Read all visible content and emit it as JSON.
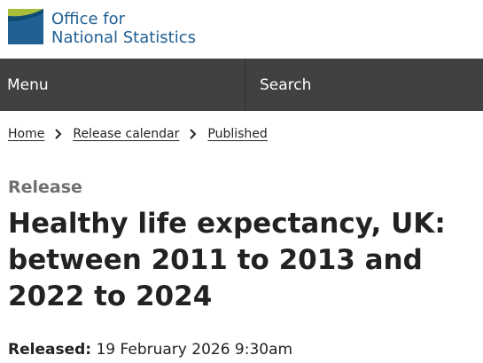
{
  "header": {
    "logo_line1": "Office for",
    "logo_line2": "National Statistics",
    "logo_icon": "ons-logo-icon",
    "brand_colors": {
      "blue": "#206095",
      "green": "#a8bd3a",
      "navbar": "#414042"
    }
  },
  "nav": {
    "menu_label": "Menu",
    "search_label": "Search"
  },
  "breadcrumb": {
    "items": [
      "Home",
      "Release calendar",
      "Published"
    ],
    "separator_icon": "chevron-right-icon"
  },
  "page": {
    "eyebrow": "Release",
    "title": "Healthy life expectancy, UK: between 2011 to 2013 and 2022 to 2024",
    "released_label": "Released:",
    "released_value": "19 February 2026 9:30am"
  }
}
